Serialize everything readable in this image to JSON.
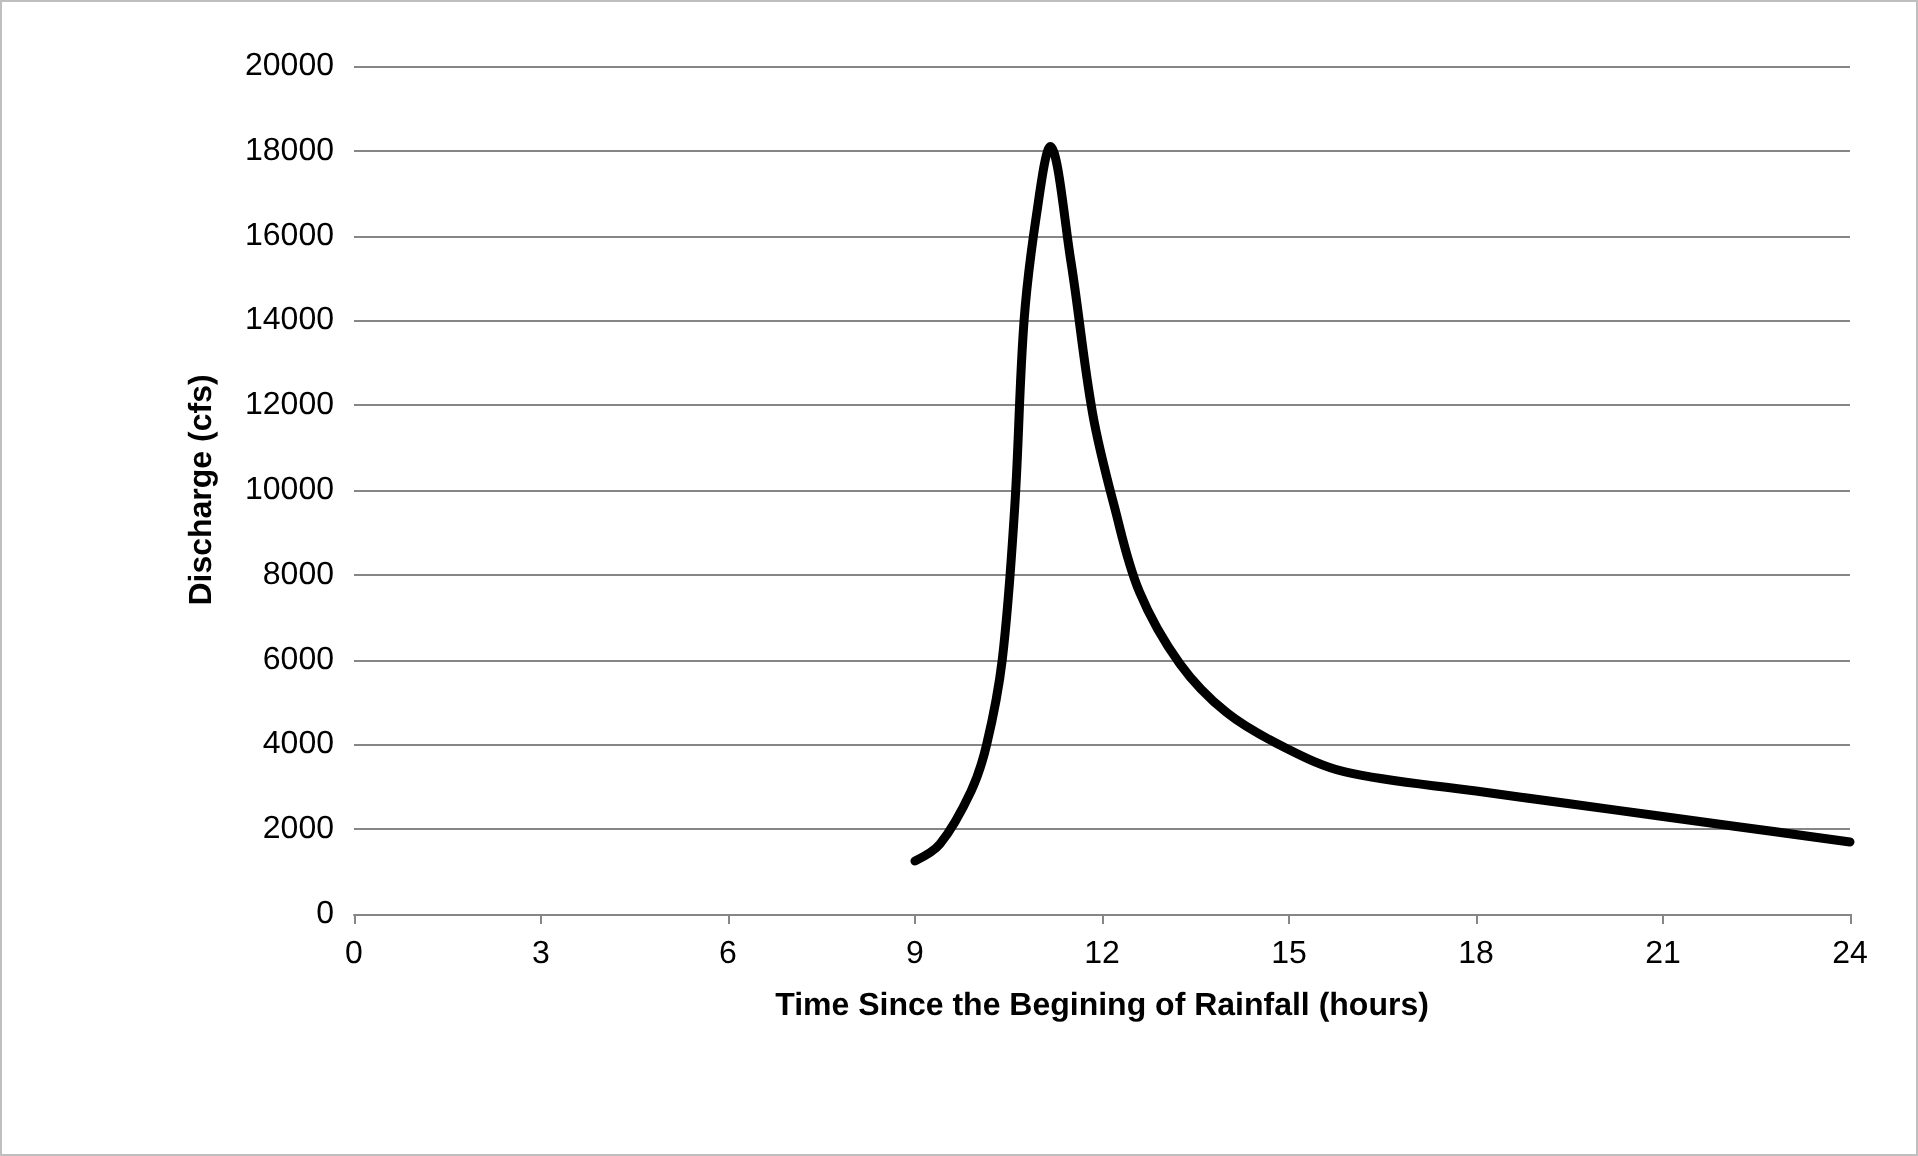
{
  "chart_data": {
    "type": "line",
    "xlabel": "Time Since the Begining of Rainfall (hours)",
    "ylabel": "Discharge (cfs)",
    "series": [
      {
        "color": "#000000",
        "x": [
          9.0,
          9.4,
          9.9,
          10.15,
          10.4,
          10.6,
          10.75,
          10.95,
          11.17,
          11.5,
          11.85,
          12.2,
          12.6,
          13.25,
          14.0,
          14.9,
          15.9,
          18.0,
          19.5,
          21.0,
          24.0
        ],
        "values": [
          1250,
          1650,
          2900,
          4000,
          6000,
          9600,
          14000,
          16500,
          18100,
          15400,
          11800,
          9600,
          7600,
          5900,
          4750,
          3950,
          3350,
          2900,
          2600,
          2300,
          1700
        ]
      }
    ],
    "xlim": [
      0,
      24
    ],
    "xticks": [
      0,
      3,
      6,
      9,
      12,
      15,
      18,
      21,
      24
    ],
    "ylim": [
      0,
      20000
    ],
    "yticks": [
      0,
      2000,
      4000,
      6000,
      8000,
      10000,
      12000,
      14000,
      16000,
      18000,
      20000
    ],
    "grid": "y",
    "marker": "none",
    "line_style": "solid"
  }
}
